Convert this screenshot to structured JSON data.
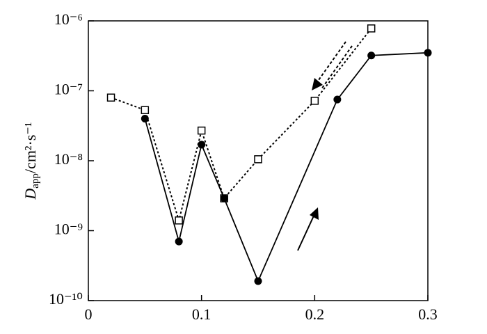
{
  "chart_data": {
    "type": "line",
    "ylabel_parts": [
      "D",
      "app",
      "/cm²·s⁻¹"
    ],
    "xlim": [
      0,
      0.3
    ],
    "xticks": [
      0,
      0.1,
      0.2,
      0.3
    ],
    "ylim": [
      1e-10,
      1e-06
    ],
    "ylog": true,
    "yticks": [
      {
        "value": 1e-10,
        "label": "10⁻¹⁰"
      },
      {
        "value": 1e-09,
        "label": "10⁻⁹"
      },
      {
        "value": 1e-08,
        "label": "10⁻⁸"
      },
      {
        "value": 1e-07,
        "label": "10⁻⁷"
      },
      {
        "value": 1e-06,
        "label": "10⁻⁶"
      }
    ],
    "series": [
      {
        "color": "#000000",
        "marker": "square",
        "dashed": true,
        "x": [
          0.02,
          0.05,
          0.08,
          0.1,
          0.12,
          0.15,
          0.2,
          0.25
        ],
        "values": [
          8e-08,
          5.3e-08,
          1.4e-09,
          2.7e-08,
          2.9e-09,
          1.05e-08,
          7.2e-08,
          7.8e-07
        ]
      },
      {
        "color": "#000000",
        "marker": "circle",
        "dashed": false,
        "x": [
          0.05,
          0.08,
          0.1,
          0.12,
          0.15,
          0.22,
          0.25,
          0.3
        ],
        "values": [
          4e-08,
          7e-10,
          1.7e-08,
          2.9e-09,
          1.9e-10,
          7.5e-08,
          3.2e-07,
          3.5e-07
        ]
      }
    ]
  }
}
